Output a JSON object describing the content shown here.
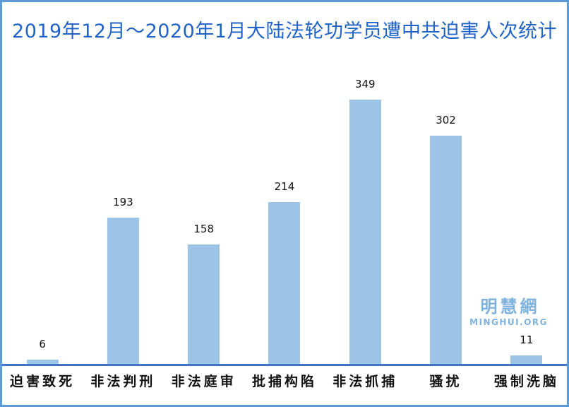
{
  "frame": {
    "border_color": "#5b9bd5",
    "background": "#ffffff"
  },
  "title": {
    "text": "2019年12月～2020年1月大陆法轮功学员遭中共迫害人次统计",
    "color": "#2063c6"
  },
  "chart_data": {
    "type": "bar",
    "categories": [
      "迫害致死",
      "非法判刑",
      "非法庭审",
      "批捕构陷",
      "非法抓捕",
      "骚扰",
      "强制洗脑"
    ],
    "values": [
      6,
      193,
      158,
      214,
      349,
      302,
      11
    ],
    "title": "2019年12月～2020年1月大陆法轮功学员遭中共迫害人次统计",
    "xlabel": "",
    "ylabel": "",
    "ylim": [
      0,
      394
    ],
    "grid": false,
    "legend": "none",
    "data_labels": true,
    "bar_color": "#9dc3e6",
    "axis_line_color": "#4472c4",
    "label_color": "#111111"
  },
  "watermark": {
    "cjk": "明慧網",
    "latin": "MINGHUI.ORG",
    "color": "#7fb2dd"
  }
}
